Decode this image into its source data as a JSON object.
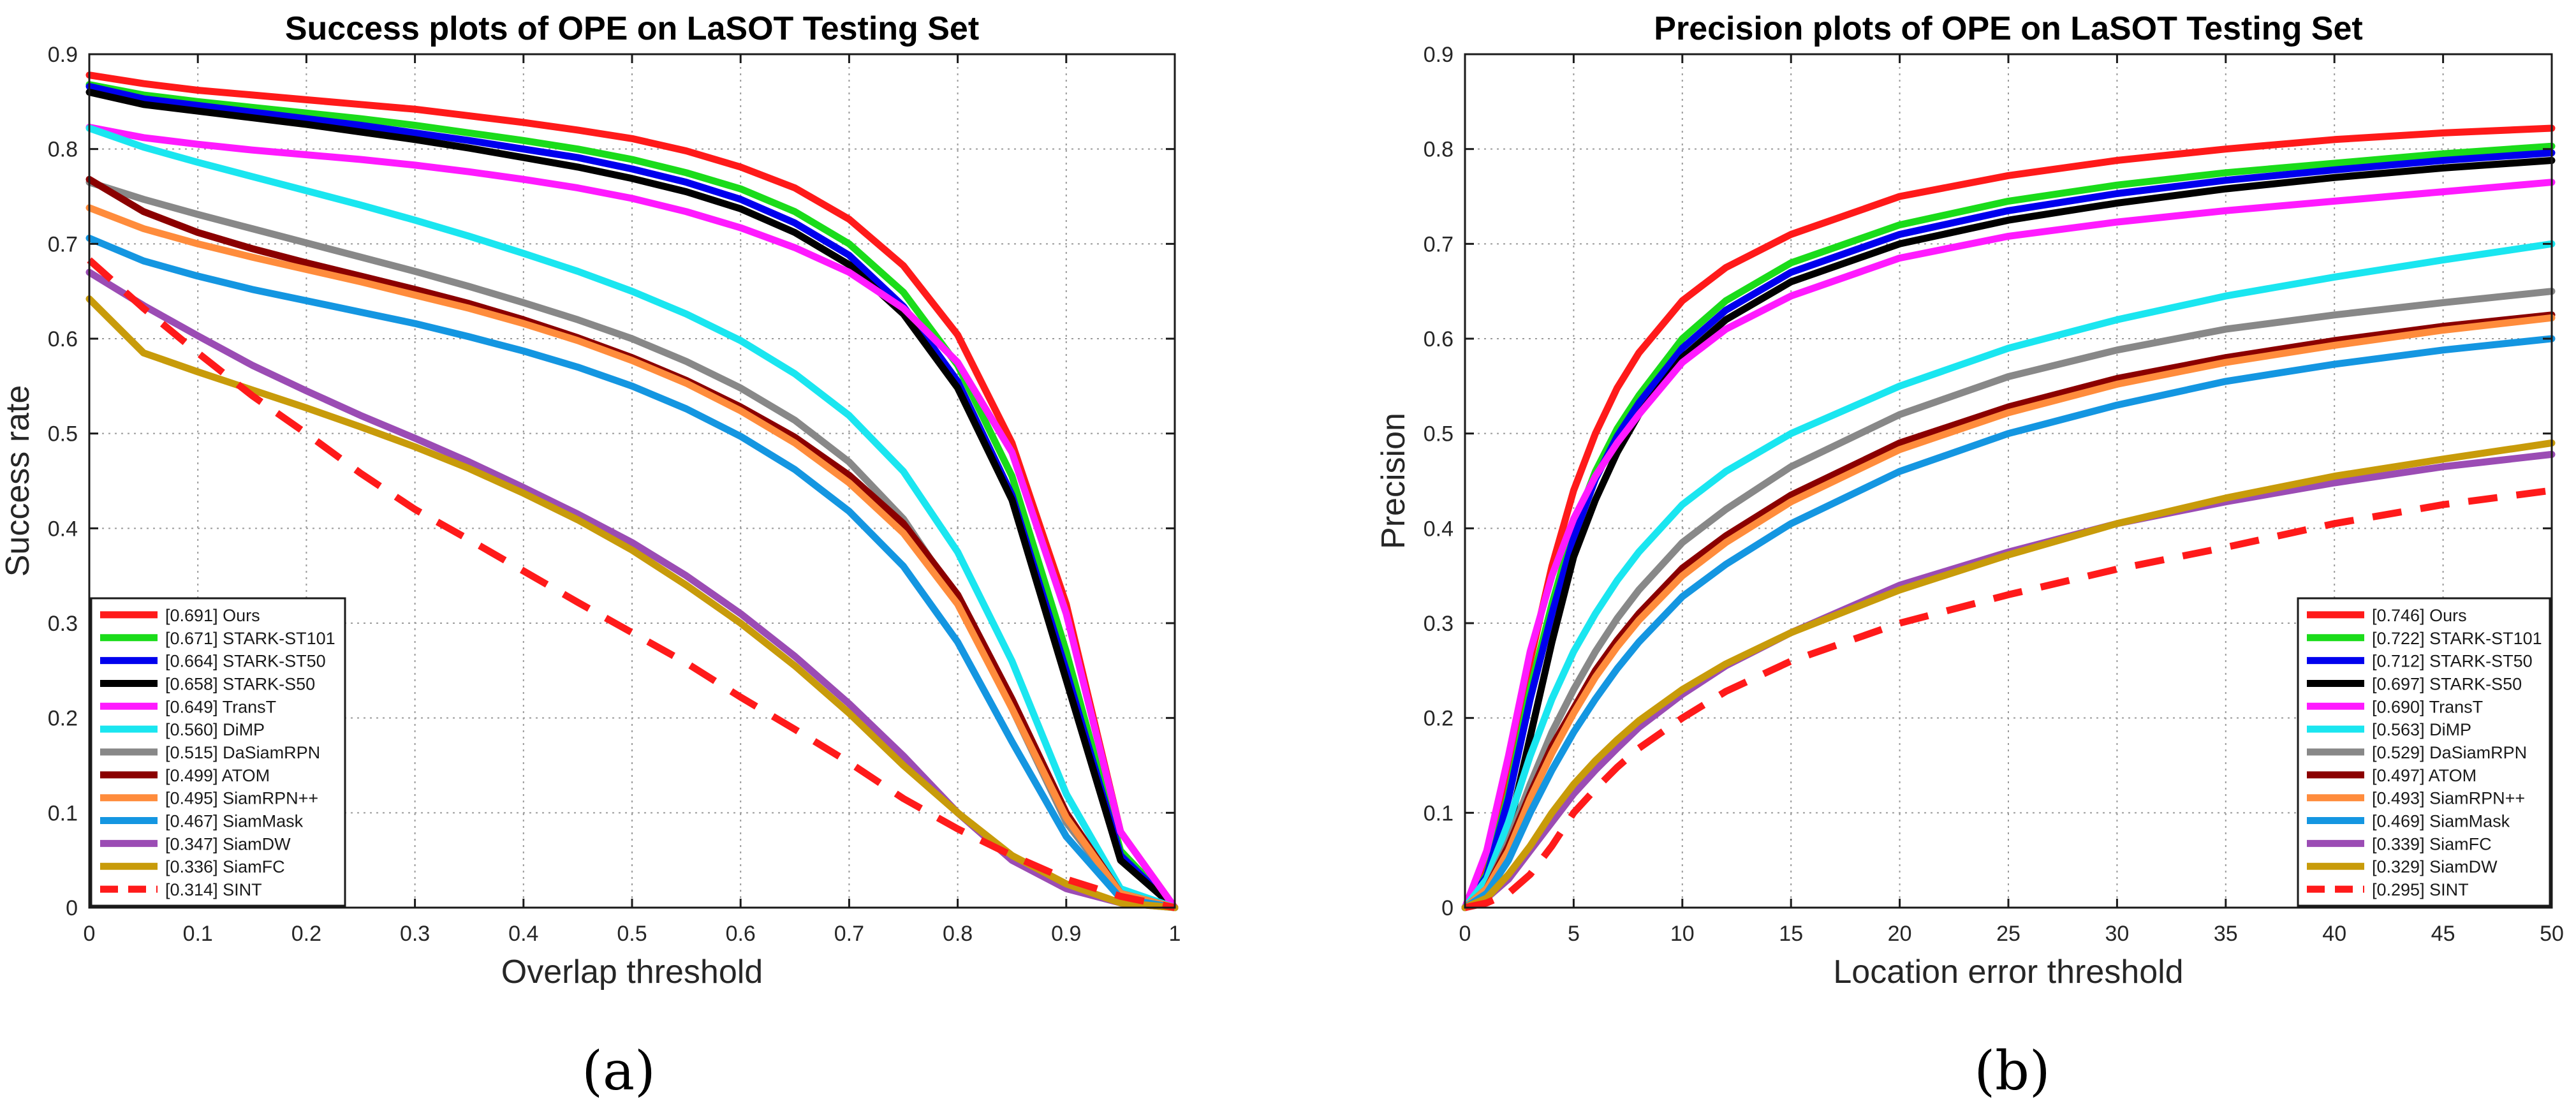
{
  "panel_labels": [
    "(a)",
    "(b)"
  ],
  "chart_data": [
    {
      "type": "line",
      "title": "Success plots of OPE on LaSOT Testing Set",
      "xlabel": "Overlap threshold",
      "ylabel": "Success rate",
      "xlim": [
        0,
        1
      ],
      "ylim": [
        0,
        0.9
      ],
      "xticks": [
        0,
        0.1,
        0.2,
        0.3,
        0.4,
        0.5,
        0.6,
        0.7,
        0.8,
        0.9,
        1
      ],
      "xtick_labels": [
        "0",
        "0.1",
        "0.2",
        "0.3",
        "0.4",
        "0.5",
        "0.6",
        "0.7",
        "0.8",
        "0.9",
        "1"
      ],
      "yticks": [
        0,
        0.1,
        0.2,
        0.3,
        0.4,
        0.5,
        0.6,
        0.7,
        0.8,
        0.9
      ],
      "ytick_labels": [
        "0",
        "0.1",
        "0.2",
        "0.3",
        "0.4",
        "0.5",
        "0.6",
        "0.7",
        "0.8",
        "0.9"
      ],
      "grid": true,
      "legend_position": "bottom-left",
      "x": [
        0,
        0.05,
        0.1,
        0.15,
        0.2,
        0.25,
        0.3,
        0.35,
        0.4,
        0.45,
        0.5,
        0.55,
        0.6,
        0.65,
        0.7,
        0.75,
        0.8,
        0.85,
        0.9,
        0.95,
        1
      ],
      "series": [
        {
          "name": "Ours",
          "label": "[0.691] Ours",
          "color": "#ff1a1a",
          "dashed": false,
          "values": [
            0.878,
            0.869,
            0.862,
            0.857,
            0.852,
            0.847,
            0.842,
            0.835,
            0.828,
            0.82,
            0.811,
            0.798,
            0.781,
            0.759,
            0.726,
            0.677,
            0.604,
            0.49,
            0.32,
            0.08,
            0.0
          ]
        },
        {
          "name": "STARK-ST101",
          "label": "[0.671] STARK-ST101",
          "color": "#1adc1a",
          "dashed": false,
          "values": [
            0.868,
            0.857,
            0.85,
            0.844,
            0.838,
            0.832,
            0.825,
            0.817,
            0.809,
            0.8,
            0.789,
            0.775,
            0.758,
            0.734,
            0.7,
            0.649,
            0.572,
            0.455,
            0.27,
            0.06,
            0.0
          ]
        },
        {
          "name": "STARK-ST50",
          "label": "[0.664] STARK-ST50",
          "color": "#0000ee",
          "dashed": false,
          "values": [
            0.866,
            0.853,
            0.846,
            0.839,
            0.832,
            0.825,
            0.817,
            0.809,
            0.8,
            0.791,
            0.779,
            0.765,
            0.747,
            0.722,
            0.688,
            0.634,
            0.555,
            0.435,
            0.25,
            0.055,
            0.0
          ]
        },
        {
          "name": "STARK-S50",
          "label": "[0.658] STARK-S50",
          "color": "#000000",
          "dashed": false,
          "values": [
            0.86,
            0.847,
            0.84,
            0.833,
            0.826,
            0.818,
            0.81,
            0.801,
            0.791,
            0.781,
            0.769,
            0.755,
            0.737,
            0.712,
            0.678,
            0.626,
            0.548,
            0.43,
            0.24,
            0.05,
            0.0
          ]
        },
        {
          "name": "TransT",
          "label": "[0.649] TransT",
          "color": "#ff1aff",
          "dashed": false,
          "values": [
            0.823,
            0.812,
            0.805,
            0.799,
            0.794,
            0.789,
            0.783,
            0.776,
            0.768,
            0.759,
            0.748,
            0.734,
            0.717,
            0.696,
            0.67,
            0.632,
            0.575,
            0.48,
            0.31,
            0.08,
            0.0
          ]
        },
        {
          "name": "DiMP",
          "label": "[0.560] DiMP",
          "color": "#1ae6f0",
          "dashed": false,
          "values": [
            0.822,
            0.802,
            0.786,
            0.771,
            0.756,
            0.741,
            0.725,
            0.708,
            0.69,
            0.671,
            0.65,
            0.626,
            0.598,
            0.563,
            0.519,
            0.46,
            0.375,
            0.26,
            0.12,
            0.02,
            0.0
          ]
        },
        {
          "name": "DaSiamRPN",
          "label": "[0.515] DaSiamRPN",
          "color": "#888888",
          "dashed": false,
          "values": [
            0.765,
            0.747,
            0.731,
            0.716,
            0.701,
            0.686,
            0.671,
            0.655,
            0.638,
            0.62,
            0.6,
            0.576,
            0.548,
            0.514,
            0.47,
            0.41,
            0.325,
            0.21,
            0.09,
            0.015,
            0.0
          ]
        },
        {
          "name": "ATOM",
          "label": "[0.499] ATOM",
          "color": "#8b0000",
          "dashed": false,
          "values": [
            0.768,
            0.734,
            0.712,
            0.695,
            0.68,
            0.666,
            0.652,
            0.637,
            0.62,
            0.601,
            0.58,
            0.556,
            0.528,
            0.496,
            0.456,
            0.405,
            0.33,
            0.22,
            0.1,
            0.015,
            0.0
          ]
        },
        {
          "name": "SiamRPN++",
          "label": "[0.495] SiamRPN++",
          "color": "#ff8c3c",
          "dashed": false,
          "values": [
            0.738,
            0.716,
            0.7,
            0.686,
            0.673,
            0.66,
            0.646,
            0.632,
            0.616,
            0.598,
            0.577,
            0.553,
            0.524,
            0.49,
            0.448,
            0.395,
            0.32,
            0.21,
            0.095,
            0.015,
            0.0
          ]
        },
        {
          "name": "SiamMask",
          "label": "[0.467] SiamMask",
          "color": "#1496e1",
          "dashed": false,
          "values": [
            0.706,
            0.682,
            0.666,
            0.652,
            0.64,
            0.628,
            0.616,
            0.602,
            0.587,
            0.57,
            0.55,
            0.526,
            0.497,
            0.462,
            0.418,
            0.36,
            0.28,
            0.175,
            0.075,
            0.01,
            0.0
          ]
        },
        {
          "name": "SiamDW",
          "label": "[0.347] SiamDW",
          "color": "#9b4cb4",
          "dashed": false,
          "values": [
            0.67,
            0.635,
            0.603,
            0.572,
            0.545,
            0.519,
            0.495,
            0.47,
            0.443,
            0.415,
            0.385,
            0.35,
            0.31,
            0.265,
            0.215,
            0.16,
            0.1,
            0.05,
            0.02,
            0.005,
            0.0
          ]
        },
        {
          "name": "SiamFC",
          "label": "[0.336] SiamFC",
          "color": "#c89b0a",
          "dashed": false,
          "values": [
            0.642,
            0.585,
            0.565,
            0.546,
            0.527,
            0.507,
            0.486,
            0.463,
            0.437,
            0.409,
            0.377,
            0.34,
            0.3,
            0.255,
            0.205,
            0.15,
            0.1,
            0.055,
            0.025,
            0.005,
            0.0
          ]
        },
        {
          "name": "SINT",
          "label": "[0.314] SINT",
          "color": "#ff1a1a",
          "dashed": true,
          "values": [
            0.683,
            0.632,
            0.585,
            0.54,
            0.5,
            0.458,
            0.42,
            0.388,
            0.355,
            0.322,
            0.29,
            0.258,
            0.222,
            0.188,
            0.153,
            0.115,
            0.083,
            0.055,
            0.03,
            0.012,
            0.0
          ]
        }
      ]
    },
    {
      "type": "line",
      "title": "Precision plots of OPE on LaSOT Testing Set",
      "xlabel": "Location error threshold",
      "ylabel": "Precision",
      "xlim": [
        0,
        50
      ],
      "ylim": [
        0,
        0.9
      ],
      "xticks": [
        0,
        5,
        10,
        15,
        20,
        25,
        30,
        35,
        40,
        45,
        50
      ],
      "xtick_labels": [
        "0",
        "5",
        "10",
        "15",
        "20",
        "25",
        "30",
        "35",
        "40",
        "45",
        "50"
      ],
      "yticks": [
        0,
        0.1,
        0.2,
        0.3,
        0.4,
        0.5,
        0.6,
        0.7,
        0.8,
        0.9
      ],
      "ytick_labels": [
        "0",
        "0.1",
        "0.2",
        "0.3",
        "0.4",
        "0.5",
        "0.6",
        "0.7",
        "0.8",
        "0.9"
      ],
      "grid": true,
      "legend_position": "bottom-right",
      "x": [
        0,
        1,
        2,
        3,
        4,
        5,
        6,
        7,
        8,
        10,
        12,
        15,
        20,
        25,
        30,
        35,
        40,
        45,
        50
      ],
      "series": [
        {
          "name": "Ours",
          "label": "[0.746] Ours",
          "color": "#ff1a1a",
          "dashed": false,
          "values": [
            0.0,
            0.04,
            0.14,
            0.26,
            0.36,
            0.44,
            0.5,
            0.548,
            0.585,
            0.64,
            0.675,
            0.71,
            0.75,
            0.772,
            0.788,
            0.8,
            0.81,
            0.817,
            0.822
          ]
        },
        {
          "name": "STARK-ST101",
          "label": "[0.722] STARK-ST101",
          "color": "#1adc1a",
          "dashed": false,
          "values": [
            0.0,
            0.035,
            0.12,
            0.23,
            0.32,
            0.4,
            0.46,
            0.505,
            0.54,
            0.6,
            0.64,
            0.68,
            0.72,
            0.745,
            0.762,
            0.775,
            0.785,
            0.795,
            0.803
          ]
        },
        {
          "name": "STARK-ST50",
          "label": "[0.712] STARK-ST50",
          "color": "#0000ee",
          "dashed": false,
          "values": [
            0.0,
            0.033,
            0.115,
            0.22,
            0.31,
            0.39,
            0.452,
            0.497,
            0.532,
            0.59,
            0.63,
            0.67,
            0.71,
            0.735,
            0.753,
            0.767,
            0.778,
            0.788,
            0.796
          ]
        },
        {
          "name": "STARK-S50",
          "label": "[0.697] STARK-S50",
          "color": "#000000",
          "dashed": false,
          "values": [
            0.0,
            0.02,
            0.08,
            0.18,
            0.28,
            0.37,
            0.43,
            0.48,
            0.52,
            0.58,
            0.62,
            0.66,
            0.7,
            0.725,
            0.743,
            0.758,
            0.77,
            0.78,
            0.788
          ]
        },
        {
          "name": "TransT",
          "label": "[0.690] TransT",
          "color": "#ff1aff",
          "dashed": false,
          "values": [
            0.0,
            0.06,
            0.16,
            0.27,
            0.35,
            0.41,
            0.455,
            0.49,
            0.52,
            0.575,
            0.61,
            0.645,
            0.685,
            0.708,
            0.723,
            0.735,
            0.745,
            0.755,
            0.765
          ]
        },
        {
          "name": "DiMP",
          "label": "[0.563] DiMP",
          "color": "#1ae6f0",
          "dashed": false,
          "values": [
            0.0,
            0.03,
            0.09,
            0.16,
            0.22,
            0.27,
            0.31,
            0.345,
            0.375,
            0.425,
            0.46,
            0.5,
            0.55,
            0.59,
            0.62,
            0.645,
            0.665,
            0.683,
            0.7
          ]
        },
        {
          "name": "DaSiamRPN",
          "label": "[0.529] DaSiamRPN",
          "color": "#888888",
          "dashed": false,
          "values": [
            0.0,
            0.02,
            0.07,
            0.13,
            0.185,
            0.23,
            0.27,
            0.305,
            0.335,
            0.385,
            0.42,
            0.465,
            0.52,
            0.56,
            0.588,
            0.61,
            0.625,
            0.638,
            0.65
          ]
        },
        {
          "name": "ATOM",
          "label": "[0.497] ATOM",
          "color": "#8b0000",
          "dashed": false,
          "values": [
            0.0,
            0.02,
            0.065,
            0.12,
            0.17,
            0.21,
            0.25,
            0.282,
            0.31,
            0.358,
            0.392,
            0.435,
            0.49,
            0.528,
            0.558,
            0.58,
            0.598,
            0.613,
            0.625
          ]
        },
        {
          "name": "SiamRPN++",
          "label": "[0.493] SiamRPN++",
          "color": "#ff8c3c",
          "dashed": false,
          "values": [
            0.0,
            0.02,
            0.06,
            0.115,
            0.163,
            0.205,
            0.243,
            0.275,
            0.303,
            0.35,
            0.385,
            0.428,
            0.483,
            0.522,
            0.552,
            0.575,
            0.593,
            0.609,
            0.622
          ]
        },
        {
          "name": "SiamMask",
          "label": "[0.469] SiamMask",
          "color": "#1496e1",
          "dashed": false,
          "values": [
            0.0,
            0.015,
            0.05,
            0.1,
            0.145,
            0.185,
            0.22,
            0.252,
            0.28,
            0.328,
            0.362,
            0.405,
            0.46,
            0.5,
            0.53,
            0.555,
            0.573,
            0.588,
            0.6
          ]
        },
        {
          "name": "SiamFC",
          "label": "[0.339] SiamFC",
          "color": "#9b4cb4",
          "dashed": false,
          "values": [
            0.0,
            0.01,
            0.03,
            0.06,
            0.09,
            0.12,
            0.145,
            0.168,
            0.19,
            0.225,
            0.255,
            0.29,
            0.34,
            0.375,
            0.405,
            0.428,
            0.448,
            0.465,
            0.478
          ]
        },
        {
          "name": "SiamDW",
          "label": "[0.329] SiamDW",
          "color": "#c89b0a",
          "dashed": false,
          "values": [
            0.0,
            0.01,
            0.035,
            0.065,
            0.1,
            0.13,
            0.155,
            0.177,
            0.197,
            0.23,
            0.257,
            0.29,
            0.335,
            0.372,
            0.405,
            0.432,
            0.455,
            0.473,
            0.49
          ]
        },
        {
          "name": "SINT",
          "label": "[0.295] SINT",
          "color": "#ff1a1a",
          "dashed": true,
          "values": [
            0.0,
            0.005,
            0.015,
            0.035,
            0.065,
            0.1,
            0.125,
            0.148,
            0.168,
            0.2,
            0.228,
            0.26,
            0.3,
            0.33,
            0.357,
            0.38,
            0.405,
            0.425,
            0.44
          ]
        }
      ]
    }
  ]
}
